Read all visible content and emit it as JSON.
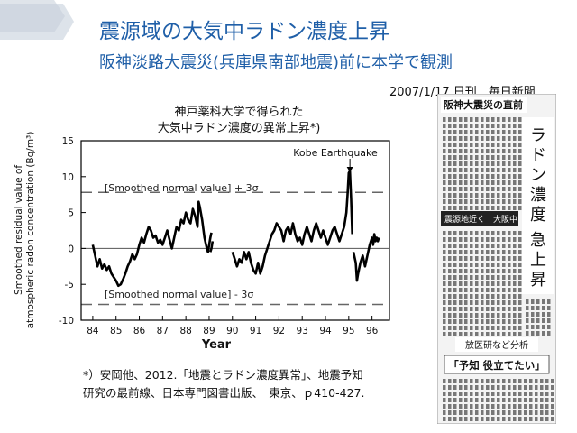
{
  "slide": {
    "title_line1": "震源域の大気中ラドン濃度上昇",
    "title_line2": "阪神淡路大震災(兵庫県南部地震)前に本学で観測",
    "source": "2007/1/17 日刊　毎日新聞",
    "chart_title_line1": "神戸薬科大学で得られた",
    "chart_title_line2": "大気中ラドン濃度の異常上昇*)",
    "citation_line1": "*）安岡他、2012.「地震とラドン濃度異常」、地震予知",
    "citation_line2": "研究の最前線、日本専門図書出版、　東京、ｐ410-427.",
    "accent_color": "#1f5fa8"
  },
  "newspaper": {
    "header": "阪神大震災の直前",
    "headline_chars": [
      "ラ",
      "ド",
      "ン",
      "濃",
      "度"
    ],
    "headline2_chars": [
      "急",
      "上",
      "昇"
    ],
    "band_text": "震源地近く　大阪中",
    "subhead": "放医研など分析",
    "quote": "「予知 役立てたい」"
  },
  "chart_data": {
    "type": "line",
    "xlabel": "Year",
    "ylabel_line1": "Smoothed residual value of",
    "ylabel_line2": "atmospheric radon concentration (Bq/m³)",
    "xlim": [
      83.5,
      96.75
    ],
    "ylim": [
      -10,
      15
    ],
    "xticks": [
      "84",
      "85",
      "86",
      "87",
      "88",
      "89",
      "90",
      "91",
      "92",
      "93",
      "94",
      "95",
      "96"
    ],
    "yticks": [
      "15",
      "10",
      "5",
      "0",
      "-5",
      "-10"
    ],
    "threshold_upper": {
      "value": 7.8,
      "label": "[Smoothed normal value] + 3σ"
    },
    "threshold_lower": {
      "value": -7.8,
      "label": "[Smoothed normal value] - 3σ"
    },
    "annotation": {
      "text": "Kobe Earthquake",
      "x": 95.05
    },
    "segments": [
      [
        [
          84.0,
          0.5
        ],
        [
          84.1,
          -1.0
        ],
        [
          84.2,
          -2.5
        ],
        [
          84.3,
          -1.5
        ],
        [
          84.4,
          -2.8
        ],
        [
          84.5,
          -2.2
        ],
        [
          84.6,
          -3.0
        ],
        [
          84.7,
          -2.5
        ],
        [
          84.8,
          -3.5
        ],
        [
          84.9,
          -4.0
        ],
        [
          85.0,
          -4.5
        ],
        [
          85.1,
          -5.2
        ],
        [
          85.2,
          -5.0
        ],
        [
          85.3,
          -4.3
        ],
        [
          85.4,
          -3.5
        ],
        [
          85.5,
          -2.5
        ],
        [
          85.6,
          -1.8
        ],
        [
          85.7,
          -0.8
        ],
        [
          85.8,
          -1.5
        ],
        [
          85.9,
          -0.8
        ],
        [
          86.0,
          0.5
        ],
        [
          86.1,
          1.5
        ],
        [
          86.2,
          0.8
        ],
        [
          86.3,
          2.0
        ],
        [
          86.4,
          3.0
        ],
        [
          86.5,
          2.5
        ],
        [
          86.6,
          1.5
        ],
        [
          86.7,
          1.8
        ],
        [
          86.8,
          0.8
        ],
        [
          86.9,
          1.2
        ],
        [
          87.0,
          0.5
        ],
        [
          87.1,
          1.5
        ],
        [
          87.2,
          2.5
        ],
        [
          87.3,
          1.2
        ],
        [
          87.4,
          0.0
        ],
        [
          87.5,
          1.5
        ],
        [
          87.6,
          3.0
        ],
        [
          87.7,
          2.5
        ],
        [
          87.8,
          4.0
        ],
        [
          87.9,
          3.5
        ],
        [
          88.0,
          5.0
        ],
        [
          88.1,
          4.0
        ],
        [
          88.2,
          3.5
        ],
        [
          88.3,
          5.5
        ],
        [
          88.4,
          4.5
        ],
        [
          88.5,
          3.0
        ],
        [
          88.55,
          6.5
        ],
        [
          88.6,
          5.8
        ],
        [
          88.7,
          4.0
        ],
        [
          88.8,
          1.5
        ],
        [
          88.9,
          0.0
        ],
        [
          88.95,
          -0.5
        ],
        [
          89.0,
          0.5
        ],
        [
          89.05,
          1.5
        ],
        [
          89.1,
          2.2
        ]
      ],
      [
        [
          89.05,
          -0.5
        ],
        [
          89.1,
          0.0
        ],
        [
          89.15,
          1.0
        ]
      ],
      [
        [
          90.0,
          -0.5
        ],
        [
          90.1,
          -1.5
        ],
        [
          90.2,
          -2.5
        ],
        [
          90.3,
          -1.5
        ],
        [
          90.4,
          -2.0
        ],
        [
          90.5,
          -0.5
        ],
        [
          90.6,
          -1.5
        ],
        [
          90.7,
          -0.5
        ],
        [
          90.8,
          -2.0
        ],
        [
          90.9,
          -3.0
        ],
        [
          91.0,
          -3.5
        ],
        [
          91.1,
          -2.0
        ],
        [
          91.2,
          -3.5
        ],
        [
          91.3,
          -2.5
        ],
        [
          91.4,
          -1.0
        ],
        [
          91.5,
          0.0
        ],
        [
          91.6,
          1.0
        ],
        [
          91.7,
          2.0
        ],
        [
          91.8,
          2.5
        ],
        [
          91.9,
          3.5
        ],
        [
          92.0,
          3.0
        ],
        [
          92.1,
          2.5
        ],
        [
          92.2,
          1.0
        ],
        [
          92.3,
          2.5
        ],
        [
          92.4,
          3.0
        ],
        [
          92.5,
          2.0
        ],
        [
          92.6,
          3.5
        ],
        [
          92.7,
          2.0
        ],
        [
          92.8,
          1.0
        ],
        [
          92.9,
          1.5
        ],
        [
          93.0,
          0.5
        ],
        [
          93.1,
          2.0
        ],
        [
          93.2,
          3.0
        ],
        [
          93.3,
          2.0
        ],
        [
          93.4,
          1.0
        ],
        [
          93.5,
          2.5
        ],
        [
          93.6,
          3.5
        ],
        [
          93.7,
          2.5
        ],
        [
          93.8,
          1.5
        ],
        [
          93.9,
          2.5
        ],
        [
          94.0,
          1.5
        ],
        [
          94.1,
          0.5
        ],
        [
          94.2,
          1.5
        ],
        [
          94.3,
          2.5
        ],
        [
          94.4,
          3.0
        ],
        [
          94.5,
          2.0
        ],
        [
          94.6,
          1.0
        ],
        [
          94.7,
          2.0
        ],
        [
          94.8,
          3.0
        ],
        [
          94.9,
          5.0
        ],
        [
          94.95,
          7.5
        ],
        [
          95.0,
          10.5
        ],
        [
          95.05,
          10.8
        ],
        [
          95.1,
          7.0
        ],
        [
          95.15,
          2.0
        ]
      ],
      [
        [
          95.2,
          -0.5
        ],
        [
          95.3,
          -2.0
        ],
        [
          95.35,
          -4.5
        ],
        [
          95.4,
          -3.5
        ],
        [
          95.5,
          -2.0
        ],
        [
          95.6,
          -1.0
        ],
        [
          95.7,
          -2.5
        ],
        [
          95.8,
          -1.0
        ],
        [
          95.9,
          0.5
        ],
        [
          96.0,
          1.5
        ],
        [
          96.05,
          0.5
        ],
        [
          96.1,
          2.0
        ],
        [
          96.15,
          1.0
        ],
        [
          96.2,
          1.5
        ],
        [
          96.25,
          1.0
        ],
        [
          96.3,
          1.5
        ]
      ]
    ]
  }
}
